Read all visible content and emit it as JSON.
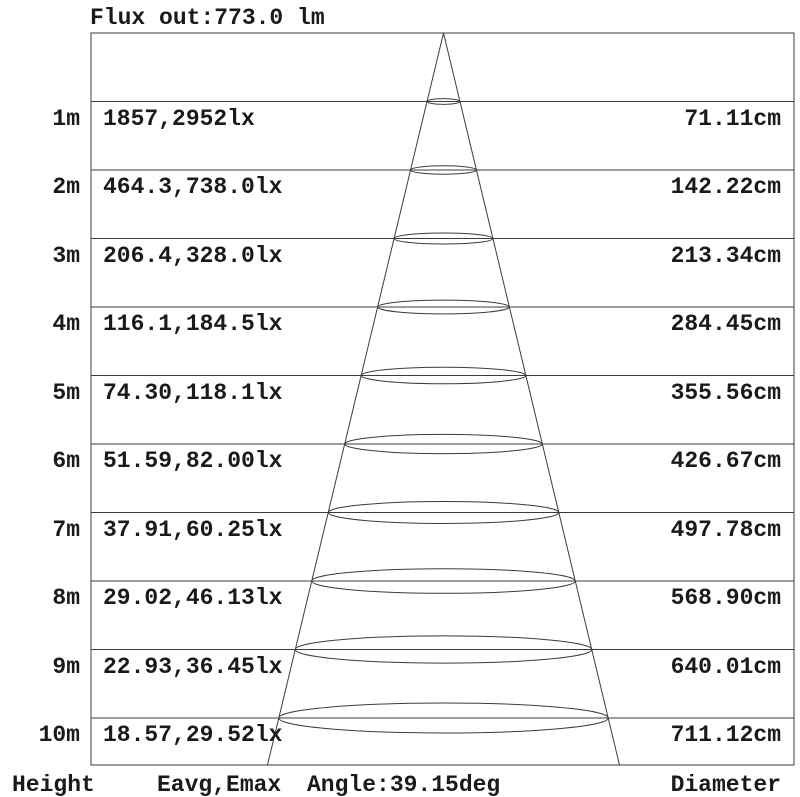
{
  "title": "Flux out:773.0 lm",
  "footer": {
    "height_label": "Height",
    "eavg_emax_label": "Eavg,Emax",
    "angle_label": "Angle:39.15deg",
    "diameter_label": "Diameter"
  },
  "colors": {
    "line": "#3c3c3c",
    "text": "#1a1a1a",
    "background": "#ffffff"
  },
  "chart_data": {
    "type": "cone-diagram",
    "title": "Flux out:773.0 lm",
    "flux_out_lm": 773.0,
    "beam_angle_deg": 39.15,
    "height_unit": "m",
    "illuminance_unit": "lx",
    "diameter_unit": "cm",
    "rows": [
      {
        "height": "1m",
        "height_m": 1,
        "eavg_emax": "1857,2952lx",
        "eavg_lx": 1857,
        "emax_lx": 2952,
        "diameter": "71.11cm",
        "diameter_cm": 71.11
      },
      {
        "height": "2m",
        "height_m": 2,
        "eavg_emax": "464.3,738.0lx",
        "eavg_lx": 464.3,
        "emax_lx": 738.0,
        "diameter": "142.22cm",
        "diameter_cm": 142.22
      },
      {
        "height": "3m",
        "height_m": 3,
        "eavg_emax": "206.4,328.0lx",
        "eavg_lx": 206.4,
        "emax_lx": 328.0,
        "diameter": "213.34cm",
        "diameter_cm": 213.34
      },
      {
        "height": "4m",
        "height_m": 4,
        "eavg_emax": "116.1,184.5lx",
        "eavg_lx": 116.1,
        "emax_lx": 184.5,
        "diameter": "284.45cm",
        "diameter_cm": 284.45
      },
      {
        "height": "5m",
        "height_m": 5,
        "eavg_emax": "74.30,118.1lx",
        "eavg_lx": 74.3,
        "emax_lx": 118.1,
        "diameter": "355.56cm",
        "diameter_cm": 355.56
      },
      {
        "height": "6m",
        "height_m": 6,
        "eavg_emax": "51.59,82.00lx",
        "eavg_lx": 51.59,
        "emax_lx": 82.0,
        "diameter": "426.67cm",
        "diameter_cm": 426.67
      },
      {
        "height": "7m",
        "height_m": 7,
        "eavg_emax": "37.91,60.25lx",
        "eavg_lx": 37.91,
        "emax_lx": 60.25,
        "diameter": "497.78cm",
        "diameter_cm": 497.78
      },
      {
        "height": "8m",
        "height_m": 8,
        "eavg_emax": "29.02,46.13lx",
        "eavg_lx": 29.02,
        "emax_lx": 46.13,
        "diameter": "568.90cm",
        "diameter_cm": 568.9
      },
      {
        "height": "9m",
        "height_m": 9,
        "eavg_emax": "22.93,36.45lx",
        "eavg_lx": 22.93,
        "emax_lx": 36.45,
        "diameter": "640.01cm",
        "diameter_cm": 640.01
      },
      {
        "height": "10m",
        "height_m": 10,
        "eavg_emax": "18.57,29.52lx",
        "eavg_lx": 18.57,
        "emax_lx": 29.52,
        "diameter": "711.12cm",
        "diameter_cm": 711.12
      }
    ]
  }
}
